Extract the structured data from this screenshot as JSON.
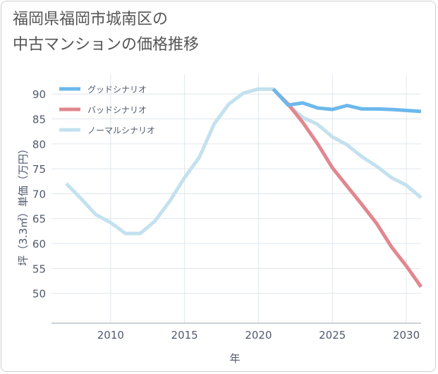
{
  "chart_data": {
    "type": "line",
    "title_line1": "福岡県福岡市城南区の",
    "title_line2": "中古マンションの価格推移",
    "xlabel": "年",
    "ylabel": "坪（3.3㎡）単価（万円）",
    "xlim": [
      2006,
      2031
    ],
    "ylim": [
      44,
      94
    ],
    "x_ticks": [
      2010,
      2015,
      2020,
      2025,
      2030
    ],
    "y_ticks": [
      50,
      55,
      60,
      65,
      70,
      75,
      80,
      85,
      90
    ],
    "grid": true,
    "legend_position": "top-left",
    "series": [
      {
        "name": "グッドシナリオ",
        "color": "#6cb8ec",
        "x": [
          2021,
          2022,
          2023,
          2024,
          2025,
          2026,
          2027,
          2028,
          2029,
          2030,
          2031
        ],
        "values": [
          91.0,
          87.8,
          88.2,
          87.2,
          86.9,
          87.7,
          87.0,
          87.0,
          86.9,
          86.7,
          86.5
        ]
      },
      {
        "name": "バッドシナリオ",
        "color": "#e1878f",
        "x": [
          2021,
          2022,
          2023,
          2024,
          2025,
          2026,
          2027,
          2028,
          2029,
          2030,
          2031
        ],
        "values": [
          91.0,
          88.0,
          84.3,
          80.0,
          75.2,
          71.5,
          67.8,
          64.0,
          59.3,
          55.5,
          51.3
        ]
      },
      {
        "name": "ノーマルシナリオ",
        "color": "#c3e1ee",
        "x": [
          2007,
          2008,
          2009,
          2010,
          2011,
          2012,
          2013,
          2014,
          2015,
          2016,
          2017,
          2018,
          2019,
          2020,
          2021,
          2022,
          2023,
          2024,
          2025,
          2026,
          2027,
          2028,
          2029,
          2030,
          2031
        ],
        "values": [
          72.0,
          69.0,
          65.8,
          64.2,
          62.0,
          62.0,
          64.5,
          68.5,
          73.2,
          77.3,
          84.0,
          88.0,
          90.2,
          91.0,
          91.0,
          87.8,
          85.3,
          83.9,
          81.4,
          79.8,
          77.4,
          75.5,
          73.2,
          71.7,
          69.2
        ]
      }
    ]
  }
}
